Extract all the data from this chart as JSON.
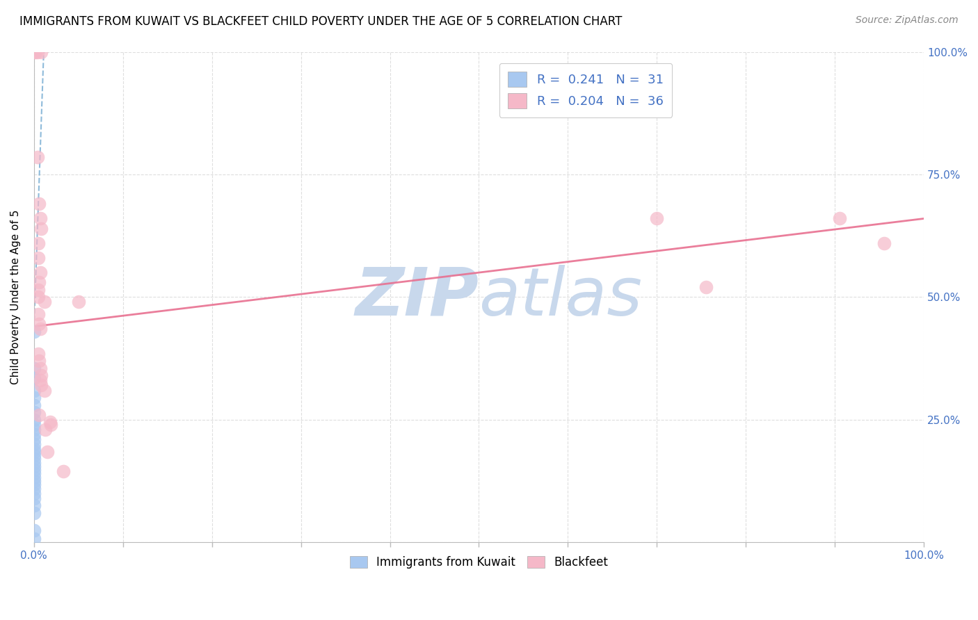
{
  "title": "IMMIGRANTS FROM KUWAIT VS BLACKFEET CHILD POVERTY UNDER THE AGE OF 5 CORRELATION CHART",
  "source": "Source: ZipAtlas.com",
  "ylabel": "Child Poverty Under the Age of 5",
  "legend_labels": [
    "Immigrants from Kuwait",
    "Blackfeet"
  ],
  "legend_R": [
    0.241,
    0.204
  ],
  "legend_N": [
    31,
    36
  ],
  "blue_color": "#A8C8F0",
  "pink_color": "#F5B8C8",
  "blue_line_color": "#7BAFD4",
  "pink_line_color": "#E87090",
  "blue_scatter": [
    [
      0.0,
      0.43
    ],
    [
      0.0,
      0.355
    ],
    [
      0.0,
      0.335
    ],
    [
      0.0,
      0.31
    ],
    [
      0.0,
      0.295
    ],
    [
      0.0,
      0.28
    ],
    [
      0.0,
      0.265
    ],
    [
      0.0,
      0.25
    ],
    [
      0.0,
      0.24
    ],
    [
      0.0,
      0.23
    ],
    [
      0.0,
      0.22
    ],
    [
      0.0,
      0.21
    ],
    [
      0.0,
      0.2
    ],
    [
      0.0,
      0.19
    ],
    [
      0.0,
      0.185
    ],
    [
      0.0,
      0.178
    ],
    [
      0.0,
      0.17
    ],
    [
      0.0,
      0.162
    ],
    [
      0.0,
      0.155
    ],
    [
      0.0,
      0.148
    ],
    [
      0.0,
      0.14
    ],
    [
      0.0,
      0.132
    ],
    [
      0.0,
      0.125
    ],
    [
      0.0,
      0.118
    ],
    [
      0.0,
      0.11
    ],
    [
      0.0,
      0.1
    ],
    [
      0.0,
      0.09
    ],
    [
      0.0,
      0.075
    ],
    [
      0.0,
      0.06
    ],
    [
      0.0,
      0.025
    ],
    [
      0.0,
      0.008
    ]
  ],
  "pink_scatter": [
    [
      0.0,
      1.0
    ],
    [
      0.002,
      1.0
    ],
    [
      0.004,
      1.0
    ],
    [
      0.008,
      1.0
    ],
    [
      0.004,
      0.785
    ],
    [
      0.006,
      0.69
    ],
    [
      0.007,
      0.66
    ],
    [
      0.008,
      0.64
    ],
    [
      0.005,
      0.61
    ],
    [
      0.005,
      0.58
    ],
    [
      0.007,
      0.55
    ],
    [
      0.006,
      0.53
    ],
    [
      0.005,
      0.515
    ],
    [
      0.005,
      0.5
    ],
    [
      0.012,
      0.49
    ],
    [
      0.005,
      0.465
    ],
    [
      0.006,
      0.445
    ],
    [
      0.007,
      0.435
    ],
    [
      0.005,
      0.385
    ],
    [
      0.006,
      0.37
    ],
    [
      0.007,
      0.355
    ],
    [
      0.008,
      0.34
    ],
    [
      0.007,
      0.33
    ],
    [
      0.008,
      0.32
    ],
    [
      0.012,
      0.31
    ],
    [
      0.006,
      0.26
    ],
    [
      0.018,
      0.245
    ],
    [
      0.019,
      0.24
    ],
    [
      0.013,
      0.23
    ],
    [
      0.015,
      0.185
    ],
    [
      0.033,
      0.145
    ],
    [
      0.05,
      0.49
    ],
    [
      0.7,
      0.66
    ],
    [
      0.755,
      0.52
    ],
    [
      0.905,
      0.66
    ],
    [
      0.955,
      0.61
    ]
  ],
  "blue_trend_x": [
    0.0,
    0.012
  ],
  "blue_trend_y": [
    0.435,
    1.05
  ],
  "pink_trend_x": [
    0.0,
    1.0
  ],
  "pink_trend_y": [
    0.44,
    0.66
  ],
  "xlim": [
    0.0,
    1.0
  ],
  "ylim": [
    0.0,
    1.05
  ],
  "plot_ylim": [
    0.0,
    1.0
  ],
  "watermark_top": "ZIP",
  "watermark_bottom": "atlas",
  "watermark_color": "#C8D8EC",
  "grid_color": "#DEDEDE",
  "title_fontsize": 12,
  "axis_label_color": "#4472C4",
  "source_color": "#888888"
}
